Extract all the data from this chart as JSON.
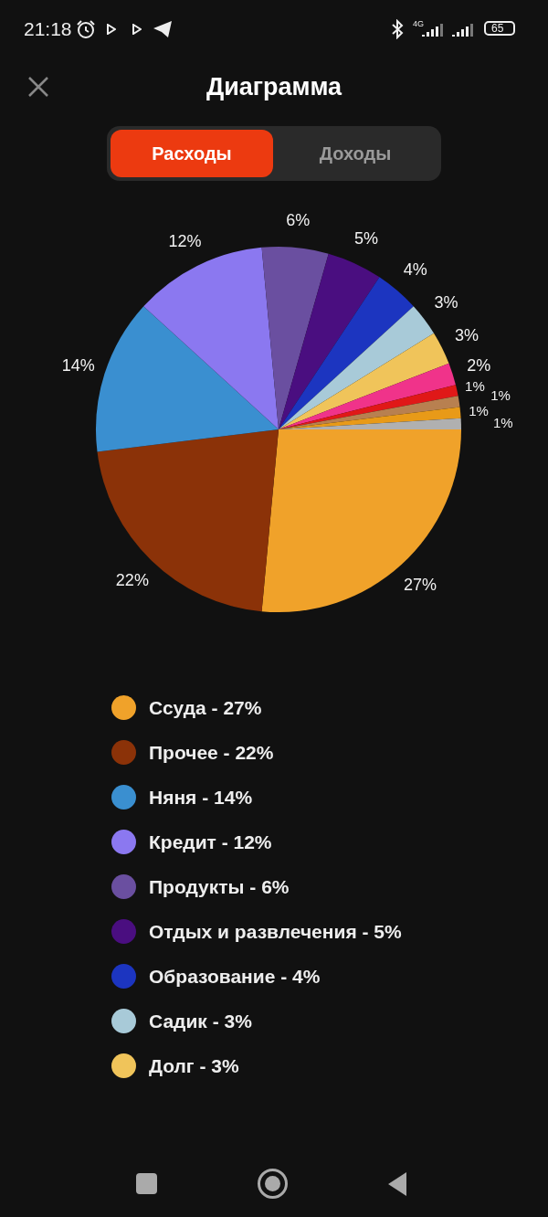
{
  "chart_data": {
    "type": "pie",
    "title": "Диаграмма",
    "categories": [
      "Ссуда - 27%",
      "Прочее - 22%",
      "Няня - 14%",
      "Кредит - 12%",
      "Продукты - 6%",
      "Отдых и развлечения - 5%",
      "Образование - 4%",
      "Садик - 3%",
      "Долг - 3%",
      null,
      null,
      null,
      null,
      null
    ],
    "values": [
      27,
      22,
      14,
      12,
      6,
      5,
      4,
      3,
      3,
      2,
      1,
      1,
      1,
      1
    ],
    "value_labels": [
      "27%",
      "22%",
      "14%",
      "12%",
      "6%",
      "5%",
      "4%",
      "3%",
      "3%",
      "2%",
      "1%",
      "1%",
      "1%",
      "1%"
    ],
    "colors": [
      "#f0a22a",
      "#8b3208",
      "#3a8fd0",
      "#8b78f0",
      "#6a4fa0",
      "#4a0e80",
      "#1c35c0",
      "#a8cad8",
      "#f0c45a",
      "#f0338a",
      "#e01818",
      "#b88050",
      "#e89a18",
      "#b0b0b0"
    ],
    "legend": "bottom",
    "annotations": [
      "21:18",
      "4G",
      "65",
      "Расходы",
      "Доходы"
    ]
  }
}
